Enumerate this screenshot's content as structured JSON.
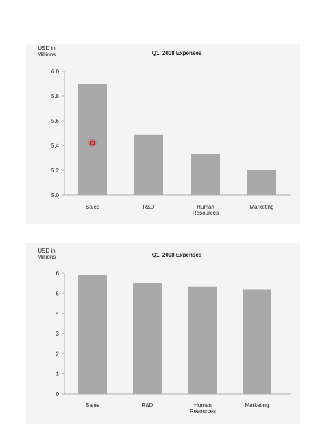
{
  "colors": {
    "bar": "#a9a9a9",
    "panel_bg": "#f4f4f4",
    "marker": "#d01f1f"
  },
  "chart_data": [
    {
      "type": "bar",
      "title": "Q1, 2008  Expenses",
      "ylabel_lines": [
        "USD in",
        "Millions"
      ],
      "categories": [
        [
          "Sales"
        ],
        [
          "R&D"
        ],
        [
          "Human",
          "Resources"
        ],
        [
          "Marketing"
        ]
      ],
      "values": [
        5.9,
        5.49,
        5.33,
        5.2
      ],
      "ylim": [
        5.0,
        6.0
      ],
      "yticks": [
        5.0,
        5.2,
        5.4,
        5.6,
        5.8,
        6.0
      ],
      "ytick_labels": [
        "5.0",
        "5.2",
        "5.4",
        "5.6",
        "5.8",
        "6.0"
      ],
      "grid": false,
      "marker": {
        "category": "Sales",
        "value": 5.42
      }
    },
    {
      "type": "bar",
      "title": "Q1, 2008  Expenses",
      "ylabel_lines": [
        "USD in",
        "Millions"
      ],
      "categories": [
        [
          "Sales"
        ],
        [
          "R&D"
        ],
        [
          "Human",
          "Resources"
        ],
        [
          "Marketing"
        ]
      ],
      "values": [
        5.9,
        5.49,
        5.33,
        5.2
      ],
      "ylim": [
        0,
        6
      ],
      "yticks": [
        0,
        1,
        2,
        3,
        4,
        5,
        6
      ],
      "ytick_labels": [
        "0",
        "1",
        "2",
        "3",
        "4",
        "5",
        "6"
      ],
      "grid": false
    }
  ]
}
